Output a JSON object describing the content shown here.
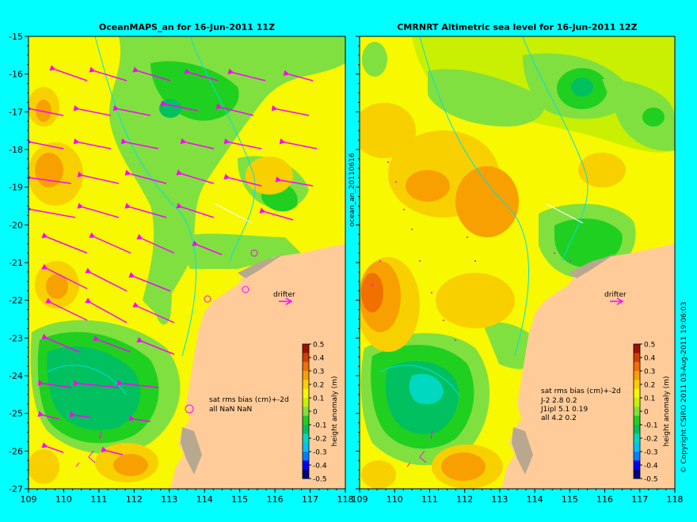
{
  "left_panel": {
    "title": "OceanMAPS_an for 16-Jun-2011 11Z",
    "side_label": "ocean_an_20110616",
    "drifter_label": "drifter",
    "stats_header": "sat rms bias (cm)+-2d",
    "stats_rows": [
      "all NaN NaN"
    ],
    "colorbar_label": "height anomaly (m)"
  },
  "right_panel": {
    "title": "CMRNRT Altimetric sea level  for 16-Jun-2011 12Z",
    "drifter_label": "drifter",
    "stats_header": "sat rms bias (cm)+-2d",
    "stats_rows": [
      "J-2   2.8 0.2",
      "J1ipl 5.1 0.19",
      "all 4.2 0.2"
    ],
    "colorbar_label": "height anomaly (m)"
  },
  "copyright": "© Copyright CSIRO 2011  03-Aug-2011 19:06:03",
  "axes": {
    "xticks": [
      "109",
      "110",
      "111",
      "112",
      "113",
      "114",
      "115",
      "116",
      "117",
      "118"
    ],
    "yticks": [
      "-15",
      "-16",
      "-17",
      "-18",
      "-19",
      "-20",
      "-21",
      "-22",
      "-23",
      "-24",
      "-25",
      "-26",
      "-27"
    ],
    "lon_range": [
      109,
      118
    ],
    "lat_range": [
      -27,
      -15
    ]
  },
  "colorbar": {
    "ticks": [
      "0.5",
      "0.4",
      "0.3",
      "0.2",
      "0.1",
      "0",
      "-0.1",
      "-0.2",
      "-0.3",
      "-0.4",
      "-0.5"
    ],
    "range": [
      -0.5,
      0.5
    ],
    "colors": [
      "#000080",
      "#0000ff",
      "#0080ff",
      "#00c0ff",
      "#00d8c0",
      "#00c060",
      "#20d020",
      "#80e040",
      "#c8f000",
      "#f8f800",
      "#f8d000",
      "#f8a000",
      "#f07000",
      "#d04000",
      "#a01000"
    ]
  },
  "colors": {
    "land": "#ffcc99",
    "background": "#00ffff",
    "vector": "#ff00ff",
    "contour": "#00e0e0"
  }
}
